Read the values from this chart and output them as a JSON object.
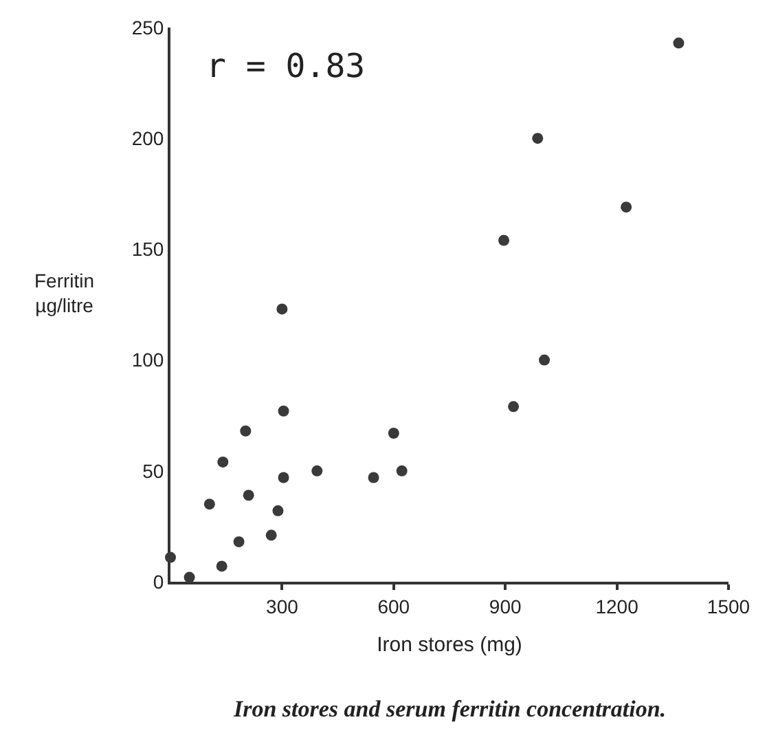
{
  "chart_data": {
    "type": "scatter",
    "title": "Iron stores and serum ferritin concentration.",
    "xlabel": "Iron stores (mg)",
    "ylabel": "Ferritin\nµg/litre",
    "annotations": [
      "r = 0.83"
    ],
    "x": [
      0,
      51,
      105,
      138,
      141,
      184,
      202,
      210,
      271,
      289,
      300,
      304,
      304,
      394,
      546,
      600,
      622,
      896,
      922,
      987,
      1005,
      1225,
      1366
    ],
    "values": [
      11,
      2,
      35,
      7,
      54,
      18,
      68,
      39,
      21,
      32,
      123,
      77,
      47,
      50,
      47,
      67,
      50,
      154,
      79,
      200,
      100,
      169,
      243
    ],
    "color": "#3a3a3a",
    "marker": "circle",
    "xlim": [
      0,
      1500
    ],
    "xticks": [
      300,
      600,
      900,
      1200,
      1500
    ],
    "ylim": [
      0,
      250
    ],
    "yticks": [
      0,
      50,
      100,
      150,
      200,
      250
    ],
    "legend": false
  }
}
